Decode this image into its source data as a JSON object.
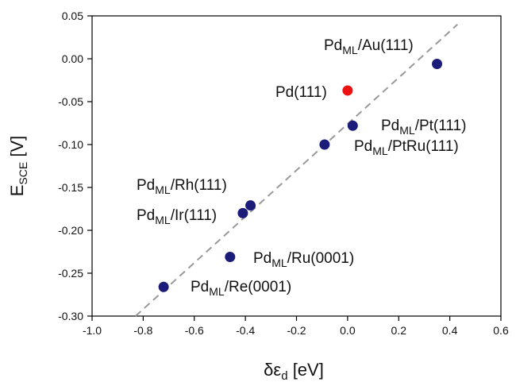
{
  "chart_data": {
    "type": "scatter",
    "title": "",
    "xlabel": {
      "main": "δε",
      "sub": "d",
      "unit": " [eV]"
    },
    "ylabel": {
      "main": "E",
      "sub": "SCE",
      "unit": " [V]"
    },
    "xlim": [
      -1.0,
      0.6
    ],
    "ylim": [
      -0.3,
      0.05
    ],
    "x_ticks": [
      -1.0,
      -0.8,
      -0.6,
      -0.4,
      -0.2,
      0.0,
      0.2,
      0.4,
      0.6
    ],
    "x_tick_labels": [
      "-1.0",
      "-0.8",
      "-0.6",
      "-0.4",
      "-0.2",
      "0.0",
      "0.2",
      "0.4",
      "0.6"
    ],
    "y_ticks": [
      0.05,
      0.0,
      -0.05,
      -0.1,
      -0.15,
      -0.2,
      -0.25,
      -0.3
    ],
    "y_tick_labels": [
      "0.05",
      "0.00",
      "-0.05",
      "-0.10",
      "-0.15",
      "-0.20",
      "-0.25",
      "-0.30"
    ],
    "grid": false,
    "legend": "none",
    "trendline": {
      "style": "dashed",
      "color": "#999999",
      "x": [
        -0.83,
        0.43
      ],
      "y": [
        -0.3,
        0.04
      ]
    },
    "points": [
      {
        "x": 0.35,
        "y": -0.006,
        "color": "#1c1c7a",
        "label": {
          "main": "Pd",
          "sub": "ML",
          "rest": "/Au(111)"
        }
      },
      {
        "x": 0.0,
        "y": -0.037,
        "color": "#ee1111",
        "label": {
          "main": "Pd(111)",
          "sub": "",
          "rest": ""
        }
      },
      {
        "x": 0.02,
        "y": -0.078,
        "color": "#1c1c7a",
        "label": {
          "main": "Pd",
          "sub": "ML",
          "rest": "/Pt(111)"
        }
      },
      {
        "x": -0.09,
        "y": -0.1,
        "color": "#1c1c7a",
        "label": {
          "main": "Pd",
          "sub": "ML",
          "rest": "/PtRu(111)"
        }
      },
      {
        "x": -0.38,
        "y": -0.171,
        "color": "#1c1c7a",
        "label": {
          "main": "Pd",
          "sub": "ML",
          "rest": "/Rh(111)"
        }
      },
      {
        "x": -0.41,
        "y": -0.18,
        "color": "#1c1c7a",
        "label": {
          "main": "Pd",
          "sub": "ML",
          "rest": "/Ir(111)"
        }
      },
      {
        "x": -0.46,
        "y": -0.231,
        "color": "#1c1c7a",
        "label": {
          "main": "Pd",
          "sub": "ML",
          "rest": "/Ru(0001)"
        }
      },
      {
        "x": -0.72,
        "y": -0.266,
        "color": "#1c1c7a",
        "label": {
          "main": "Pd",
          "sub": "ML",
          "rest": "/Re(0001)"
        }
      }
    ]
  }
}
